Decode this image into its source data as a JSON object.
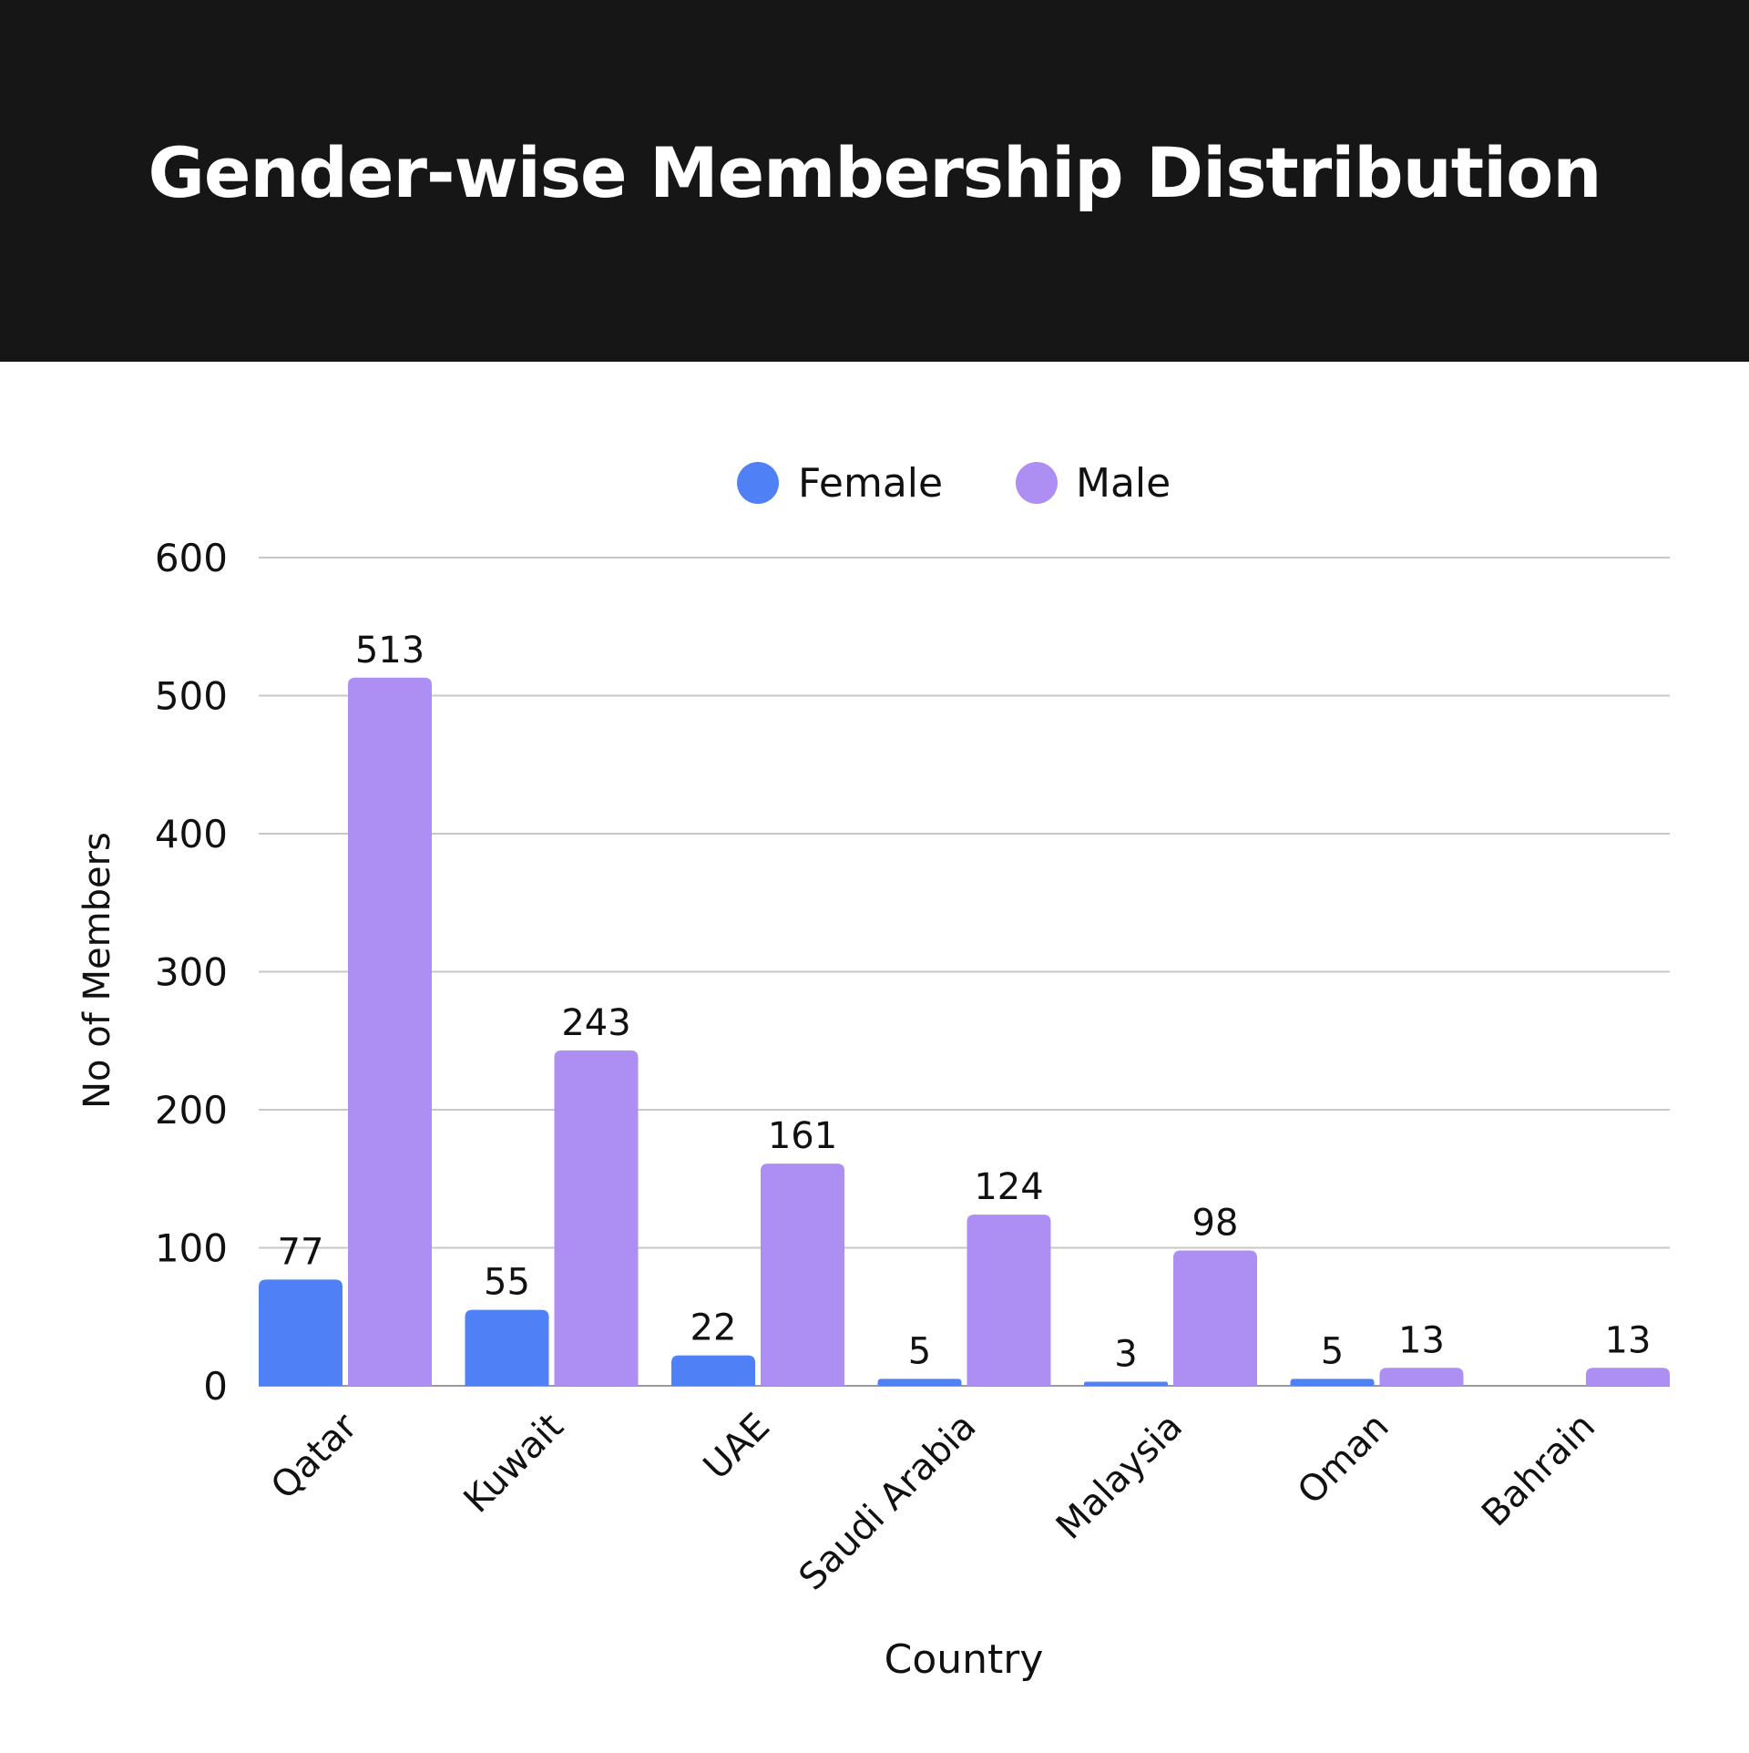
{
  "header": {
    "title": "Gender-wise Membership Distribution"
  },
  "colors": {
    "header_bg": "#161616",
    "female": "#4f80f5",
    "male": "#ad8ef3",
    "grid": "#c8c8c8"
  },
  "chart_data": {
    "type": "bar",
    "title": "Gender-wise Membership Distribution",
    "xlabel": "Country",
    "ylabel": "No of Members",
    "categories": [
      "Qatar",
      "Kuwait",
      "UAE",
      "Saudi Arabia",
      "Malaysia",
      "Oman",
      "Bahrain"
    ],
    "series": [
      {
        "name": "Female",
        "color": "#4f80f5",
        "values": [
          77,
          55,
          22,
          5,
          3,
          5,
          null
        ]
      },
      {
        "name": "Male",
        "color": "#ad8ef3",
        "values": [
          513,
          243,
          161,
          124,
          98,
          13,
          13
        ]
      }
    ],
    "ylim": [
      0,
      600
    ],
    "yticks": [
      0,
      100,
      200,
      300,
      400,
      500,
      600
    ],
    "grid": true,
    "legend_position": "top-center",
    "data_labels": true
  }
}
